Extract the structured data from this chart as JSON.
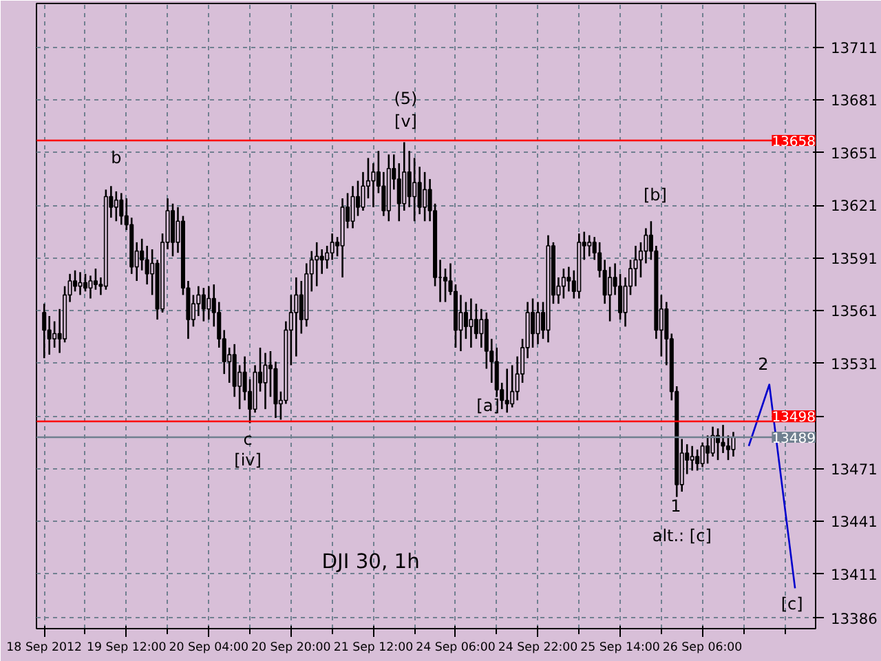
{
  "chart_data": {
    "type": "candlestick",
    "title": "DJI 30, 1h",
    "color": "#000000",
    "categories": [
      "18 Sep 2012",
      null,
      null,
      null,
      null,
      null,
      null,
      null,
      null,
      null,
      null,
      null,
      null,
      null,
      null,
      null,
      "19 Sep 12:00",
      null,
      null,
      null,
      null,
      null,
      null,
      null,
      null,
      null,
      null,
      null,
      null,
      null,
      null,
      null,
      "20 Sep 04:00",
      null,
      null,
      null,
      null,
      null,
      null,
      null,
      null,
      null,
      null,
      null,
      null,
      null,
      null,
      null,
      "20 Sep 20:00",
      null,
      null,
      null,
      null,
      null,
      null,
      null,
      null,
      null,
      null,
      null,
      null,
      null,
      null,
      null,
      "21 Sep 12:00",
      null,
      null,
      null,
      null,
      null,
      null,
      null,
      null,
      null,
      null,
      null,
      null,
      null,
      null,
      null,
      "24 Sep 06:00",
      null,
      null,
      null,
      null,
      null,
      null,
      null,
      null,
      null,
      null,
      null,
      null,
      null,
      null,
      null,
      "24 Sep 22:00",
      null,
      null,
      null,
      null,
      null,
      null,
      null,
      null,
      null,
      null,
      null,
      null,
      null,
      null,
      null,
      "25 Sep 14:00",
      null,
      null,
      null,
      null,
      null,
      null,
      null,
      null,
      null,
      null,
      null,
      null,
      null,
      null,
      null,
      "26 Sep 06:00",
      null,
      null,
      null,
      null,
      null,
      null,
      null,
      null,
      null,
      null,
      null,
      null,
      null,
      null,
      null,
      null,
      null,
      null
    ],
    "ohlc": [
      [
        13560,
        13565,
        13534,
        13550
      ],
      [
        13550,
        13558,
        13536,
        13545
      ],
      [
        13545,
        13555,
        13540,
        13548
      ],
      [
        13548,
        13562,
        13537,
        13545
      ],
      [
        13545,
        13575,
        13543,
        13570
      ],
      [
        13570,
        13582,
        13566,
        13578
      ],
      [
        13578,
        13584,
        13572,
        13575
      ],
      [
        13575,
        13583,
        13570,
        13577
      ],
      [
        13577,
        13582,
        13572,
        13574
      ],
      [
        13574,
        13581,
        13568,
        13578
      ],
      [
        13578,
        13585,
        13573,
        13576
      ],
      [
        13576,
        13580,
        13570,
        13575
      ],
      [
        13575,
        13630,
        13573,
        13626
      ],
      [
        13626,
        13632,
        13614,
        13620
      ],
      [
        13620,
        13629,
        13612,
        13624
      ],
      [
        13624,
        13628,
        13610,
        13615
      ],
      [
        13615,
        13625,
        13607,
        13610
      ],
      [
        13610,
        13614,
        13582,
        13586
      ],
      [
        13586,
        13600,
        13578,
        13595
      ],
      [
        13595,
        13602,
        13584,
        13590
      ],
      [
        13590,
        13598,
        13576,
        13582
      ],
      [
        13582,
        13596,
        13570,
        13588
      ],
      [
        13588,
        13590,
        13556,
        13562
      ],
      [
        13562,
        13605,
        13560,
        13600
      ],
      [
        13600,
        13625,
        13596,
        13618
      ],
      [
        13618,
        13622,
        13592,
        13600
      ],
      [
        13600,
        13620,
        13594,
        13612
      ],
      [
        13612,
        13615,
        13570,
        13574
      ],
      [
        13574,
        13578,
        13545,
        13556
      ],
      [
        13556,
        13570,
        13552,
        13565
      ],
      [
        13565,
        13575,
        13558,
        13570
      ],
      [
        13570,
        13574,
        13555,
        13562
      ],
      [
        13562,
        13575,
        13556,
        13568
      ],
      [
        13568,
        13576,
        13552,
        13560
      ],
      [
        13560,
        13566,
        13540,
        13545
      ],
      [
        13545,
        13550,
        13525,
        13532
      ],
      [
        13532,
        13540,
        13520,
        13536
      ],
      [
        13536,
        13542,
        13512,
        13518
      ],
      [
        13518,
        13530,
        13505,
        13526
      ],
      [
        13526,
        13535,
        13510,
        13515
      ],
      [
        13515,
        13522,
        13497,
        13505
      ],
      [
        13505,
        13530,
        13503,
        13526
      ],
      [
        13526,
        13540,
        13515,
        13520
      ],
      [
        13520,
        13537,
        13505,
        13530
      ],
      [
        13530,
        13538,
        13512,
        13528
      ],
      [
        13528,
        13532,
        13500,
        13508
      ],
      [
        13508,
        13515,
        13499,
        13510
      ],
      [
        13510,
        13555,
        13508,
        13550
      ],
      [
        13550,
        13570,
        13530,
        13560
      ],
      [
        13560,
        13580,
        13535,
        13570
      ],
      [
        13570,
        13578,
        13548,
        13556
      ],
      [
        13556,
        13588,
        13552,
        13582
      ],
      [
        13582,
        13595,
        13572,
        13590
      ],
      [
        13590,
        13600,
        13575,
        13592
      ],
      [
        13592,
        13596,
        13582,
        13590
      ],
      [
        13590,
        13598,
        13585,
        13594
      ],
      [
        13594,
        13605,
        13590,
        13600
      ],
      [
        13600,
        13603,
        13592,
        13598
      ],
      [
        13598,
        13625,
        13580,
        13620
      ],
      [
        13620,
        13628,
        13608,
        13612
      ],
      [
        13612,
        13632,
        13608,
        13626
      ],
      [
        13626,
        13635,
        13615,
        13620
      ],
      [
        13620,
        13640,
        13618,
        13632
      ],
      [
        13632,
        13648,
        13625,
        13635
      ],
      [
        13635,
        13645,
        13620,
        13640
      ],
      [
        13640,
        13652,
        13628,
        13632
      ],
      [
        13632,
        13640,
        13615,
        13618
      ],
      [
        13618,
        13650,
        13612,
        13642
      ],
      [
        13642,
        13650,
        13630,
        13636
      ],
      [
        13636,
        13645,
        13612,
        13622
      ],
      [
        13622,
        13657,
        13618,
        13640
      ],
      [
        13640,
        13652,
        13620,
        13626
      ],
      [
        13626,
        13648,
        13612,
        13634
      ],
      [
        13634,
        13643,
        13616,
        13620
      ],
      [
        13620,
        13640,
        13612,
        13630
      ],
      [
        13630,
        13636,
        13612,
        13618
      ],
      [
        13618,
        13622,
        13575,
        13580
      ],
      [
        13580,
        13590,
        13566,
        13580
      ],
      [
        13580,
        13585,
        13566,
        13578
      ],
      [
        13578,
        13588,
        13570,
        13572
      ],
      [
        13572,
        13576,
        13540,
        13550
      ],
      [
        13550,
        13570,
        13538,
        13560
      ],
      [
        13560,
        13566,
        13545,
        13552
      ],
      [
        13552,
        13568,
        13540,
        13556
      ],
      [
        13556,
        13565,
        13545,
        13548
      ],
      [
        13548,
        13562,
        13540,
        13556
      ],
      [
        13556,
        13560,
        13528,
        13538
      ],
      [
        13538,
        13545,
        13520,
        13532
      ],
      [
        13532,
        13540,
        13512,
        13516
      ],
      [
        13516,
        13520,
        13505,
        13510
      ],
      [
        13510,
        13528,
        13503,
        13508
      ],
      [
        13508,
        13530,
        13506,
        13515
      ],
      [
        13515,
        13535,
        13510,
        13525
      ],
      [
        13525,
        13545,
        13520,
        13540
      ],
      [
        13540,
        13566,
        13534,
        13560
      ],
      [
        13560,
        13568,
        13540,
        13548
      ],
      [
        13548,
        13566,
        13542,
        13560
      ],
      [
        13560,
        13566,
        13545,
        13550
      ],
      [
        13550,
        13604,
        13543,
        13598
      ],
      [
        13598,
        13600,
        13565,
        13570
      ],
      [
        13570,
        13580,
        13565,
        13575
      ],
      [
        13575,
        13585,
        13568,
        13580
      ],
      [
        13580,
        13586,
        13572,
        13578
      ],
      [
        13578,
        13584,
        13568,
        13572
      ],
      [
        13572,
        13605,
        13568,
        13600
      ],
      [
        13600,
        13606,
        13590,
        13598
      ],
      [
        13598,
        13604,
        13592,
        13600
      ],
      [
        13600,
        13603,
        13590,
        13594
      ],
      [
        13594,
        13600,
        13580,
        13584
      ],
      [
        13584,
        13590,
        13565,
        13570
      ],
      [
        13570,
        13586,
        13555,
        13580
      ],
      [
        13580,
        13588,
        13570,
        13575
      ],
      [
        13575,
        13582,
        13556,
        13560
      ],
      [
        13560,
        13580,
        13552,
        13575
      ],
      [
        13575,
        13590,
        13570,
        13585
      ],
      [
        13585,
        13598,
        13575,
        13590
      ],
      [
        13590,
        13600,
        13580,
        13595
      ],
      [
        13595,
        13608,
        13588,
        13604
      ],
      [
        13604,
        13612,
        13590,
        13595
      ],
      [
        13595,
        13598,
        13545,
        13550
      ],
      [
        13550,
        13570,
        13535,
        13562
      ],
      [
        13562,
        13566,
        13530,
        13545
      ],
      [
        13545,
        13548,
        13510,
        13515
      ],
      [
        13515,
        13518,
        13455,
        13462
      ],
      [
        13462,
        13488,
        13458,
        13480
      ],
      [
        13480,
        13485,
        13468,
        13476
      ],
      [
        13476,
        13484,
        13470,
        13478
      ],
      [
        13478,
        13482,
        13470,
        13474
      ],
      [
        13474,
        13486,
        13472,
        13484
      ],
      [
        13484,
        13490,
        13474,
        13480
      ],
      [
        13480,
        13495,
        13478,
        13490
      ],
      [
        13490,
        13494,
        13476,
        13486
      ],
      [
        13486,
        13496,
        13480,
        13484
      ],
      [
        13484,
        13490,
        13476,
        13482
      ],
      [
        13482,
        13492,
        13478,
        13489
      ],
      null,
      null,
      null,
      null,
      null,
      null,
      null,
      null,
      null,
      null,
      null,
      null
    ],
    "series": [
      {
        "type": "line",
        "color": "#0000cc",
        "values": [
          null,
          null,
          null,
          null,
          null,
          null,
          null,
          null,
          null,
          null,
          null,
          null,
          null,
          null,
          null,
          null,
          null,
          null,
          null,
          null,
          null,
          null,
          null,
          null,
          null,
          null,
          null,
          null,
          null,
          null,
          null,
          null,
          null,
          null,
          null,
          null,
          null,
          null,
          null,
          null,
          null,
          null,
          null,
          null,
          null,
          null,
          null,
          null,
          null,
          null,
          null,
          null,
          null,
          null,
          null,
          null,
          null,
          null,
          null,
          null,
          null,
          null,
          null,
          null,
          null,
          null,
          null,
          null,
          null,
          null,
          null,
          null,
          null,
          null,
          null,
          null,
          null,
          null,
          null,
          null,
          null,
          null,
          null,
          null,
          null,
          null,
          null,
          null,
          null,
          null,
          null,
          null,
          null,
          null,
          null,
          null,
          null,
          null,
          null,
          null,
          null,
          null,
          null,
          null,
          null,
          null,
          null,
          null,
          null,
          null,
          null,
          null,
          null,
          null,
          null,
          null,
          null,
          null,
          null,
          null,
          null,
          null,
          null,
          null,
          null,
          null,
          null,
          null,
          null,
          null,
          null,
          null,
          null,
          null,
          null,
          null,
          null,
          13484,
          null,
          null,
          null,
          13519,
          null,
          null,
          null,
          null,
          13403
        ]
      }
    ],
    "ylim": [
      13380,
      13736
    ],
    "yticks": [
      13386,
      13411,
      13441,
      13471,
      {
        "value": 13501,
        "label": null
      },
      13531,
      13561,
      13591,
      13621,
      13651,
      13681,
      13711
    ],
    "grid": true,
    "ref_lines": [
      {
        "axis": "y",
        "value": 13658,
        "label": "13658",
        "color": "#ff0000"
      },
      {
        "axis": "y",
        "value": 13498,
        "label": "13498",
        "color": "#ff0000"
      },
      {
        "axis": "y",
        "value": 13489,
        "label": "13489",
        "color": "#708090"
      }
    ],
    "annotations": [
      "b",
      "c",
      "[iv]",
      "(5)",
      "[v]",
      "[a]",
      "[b]",
      "1",
      "alt.: [c]",
      "2",
      "[c]"
    ]
  }
}
